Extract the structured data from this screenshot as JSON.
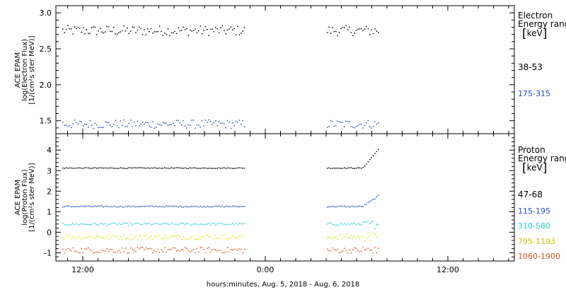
{
  "chart_data": [
    {
      "type": "scatter",
      "panel": "electron",
      "ylabel_lines": [
        "ACE EPAM",
        "log(Electron Flux)",
        "[1/(cm²s ster MeV)]"
      ],
      "legend_title_lines": [
        "Electron",
        "Energy range"
      ],
      "legend_unit": "keV",
      "yticks": [
        "1.5",
        "2.0",
        "2.5",
        "3.0"
      ],
      "ylim": [
        1.32,
        3.1
      ],
      "series": [
        {
          "name": "38-53",
          "color": "#000000",
          "mean": 2.76,
          "jitter": 0.07,
          "label_color": "#000000"
        },
        {
          "name": "175-315",
          "color": "#1a4fcf",
          "mean": 1.46,
          "jitter": 0.06,
          "label_color": "#1a4fcf"
        }
      ]
    },
    {
      "type": "scatter",
      "panel": "proton",
      "ylabel_lines": [
        "ACE EPAM",
        "log(Proton Flux)",
        "[1/(cm²s ster MeV)]"
      ],
      "legend_title_lines": [
        "Proton",
        "Energy range"
      ],
      "legend_unit": "keV",
      "yticks": [
        "-1",
        "0",
        "1",
        "2",
        "3",
        "4"
      ],
      "ylim": [
        -1.4,
        4.8
      ],
      "series": [
        {
          "name": "47-68",
          "color": "#000000",
          "mean": 3.15,
          "jitter": 0.02,
          "label_color": "#000000"
        },
        {
          "name": "115-195",
          "color": "#1a4fcf",
          "mean": 1.28,
          "jitter": 0.03,
          "label_color": "#1a4fcf"
        },
        {
          "name": "310-580",
          "color": "#22d0d0",
          "mean": 0.42,
          "jitter": 0.06,
          "label_color": "#22d0d0"
        },
        {
          "name": "795-1193",
          "color": "#e6e600",
          "mean": -0.2,
          "jitter": 0.12,
          "label_color": "#c8c800"
        },
        {
          "name": "1060-1900",
          "color": "#e8521a",
          "mean": -0.85,
          "jitter": 0.14,
          "label_color": "#e8521a"
        }
      ]
    }
  ],
  "x_axis": {
    "label": "hours:minutes, Aug.  5, 2018 - Aug.  6, 2018",
    "ticks": [
      "12:00",
      "0:00",
      "12:00"
    ]
  }
}
